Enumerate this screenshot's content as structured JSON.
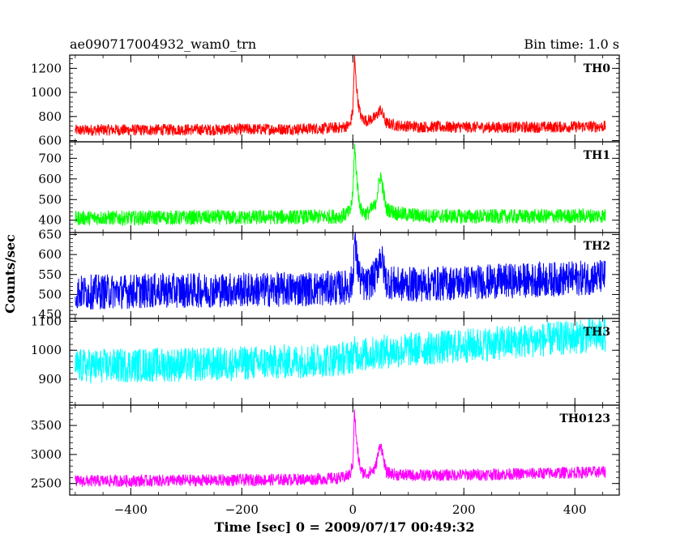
{
  "chart_data": {
    "type": "line",
    "title": "ae090717004932_wam0_trn",
    "subtitle": "Bin time: 1.0 s",
    "xlabel": "Time [sec] 0 = 2009/07/17 00:49:32",
    "ylabel": "Counts/sec",
    "xlim": [
      -510,
      480
    ],
    "x_ticks": [
      -400,
      -200,
      0,
      200,
      400
    ],
    "x_tick_labels": [
      "−400",
      "−200",
      "0",
      "200",
      "400"
    ],
    "x_sample": [
      -500,
      -450,
      -400,
      -350,
      -300,
      -250,
      -200,
      -150,
      -100,
      -50,
      -20,
      -5,
      0,
      3,
      6,
      10,
      15,
      25,
      40,
      50,
      60,
      80,
      120,
      200,
      300,
      400,
      455
    ],
    "panels": [
      {
        "name": "TH0",
        "color": "#ff0000",
        "ylim": [
          590,
          1310
        ],
        "y_ticks": [
          600,
          800,
          1000,
          1200
        ],
        "y_tick_labels": [
          "600",
          "800",
          "1000",
          "1200"
        ],
        "noise": 60,
        "values": [
          685,
          690,
          688,
          690,
          692,
          690,
          694,
          695,
          697,
          702,
          708,
          730,
          850,
          1290,
          1080,
          900,
          790,
          765,
          790,
          860,
          745,
          725,
          715,
          712,
          710,
          715,
          718
        ]
      },
      {
        "name": "TH1",
        "color": "#00ff00",
        "ylim": [
          340,
          780
        ],
        "y_ticks": [
          400,
          500,
          600,
          700
        ],
        "y_tick_labels": [
          "400",
          "500",
          "600",
          "700"
        ],
        "noise": 45,
        "values": [
          410,
          412,
          410,
          413,
          412,
          414,
          412,
          415,
          415,
          417,
          420,
          440,
          520,
          760,
          650,
          520,
          445,
          430,
          470,
          620,
          455,
          432,
          422,
          418,
          418,
          420,
          422
        ]
      },
      {
        "name": "TH2",
        "color": "#0000ff",
        "ylim": [
          440,
          655
        ],
        "y_ticks": [
          450,
          500,
          550,
          600,
          650
        ],
        "y_tick_labels": [
          "450",
          "500",
          "550",
          "600",
          "650"
        ],
        "noise": 55,
        "values": [
          505,
          507,
          508,
          510,
          510,
          511,
          512,
          512,
          514,
          515,
          517,
          520,
          540,
          635,
          600,
          560,
          530,
          522,
          545,
          600,
          535,
          525,
          525,
          530,
          535,
          540,
          545
        ]
      },
      {
        "name": "TH3",
        "color": "#00ffff",
        "ylim": [
          810,
          1110
        ],
        "y_ticks": [
          900,
          1000,
          1100
        ],
        "y_tick_labels": [
          "900",
          "1000",
          "1100"
        ],
        "noise": 75,
        "values": [
          945,
          945,
          948,
          950,
          950,
          952,
          955,
          958,
          962,
          966,
          970,
          975,
          980,
          990,
          990,
          988,
          985,
          985,
          990,
          995,
          995,
          998,
          1005,
          1015,
          1030,
          1045,
          1055
        ]
      },
      {
        "name": "TH0123",
        "color": "#ff00ff",
        "ylim": [
          2300,
          3850
        ],
        "y_ticks": [
          2500,
          3000,
          3500
        ],
        "y_tick_labels": [
          "2500",
          "3000",
          "3500"
        ],
        "noise": 130,
        "values": [
          2540,
          2545,
          2545,
          2550,
          2552,
          2555,
          2560,
          2565,
          2570,
          2580,
          2595,
          2650,
          2850,
          3750,
          3300,
          2950,
          2700,
          2660,
          2750,
          3200,
          2690,
          2650,
          2640,
          2650,
          2665,
          2690,
          2700
        ]
      }
    ],
    "grid": false,
    "legend": "none"
  }
}
